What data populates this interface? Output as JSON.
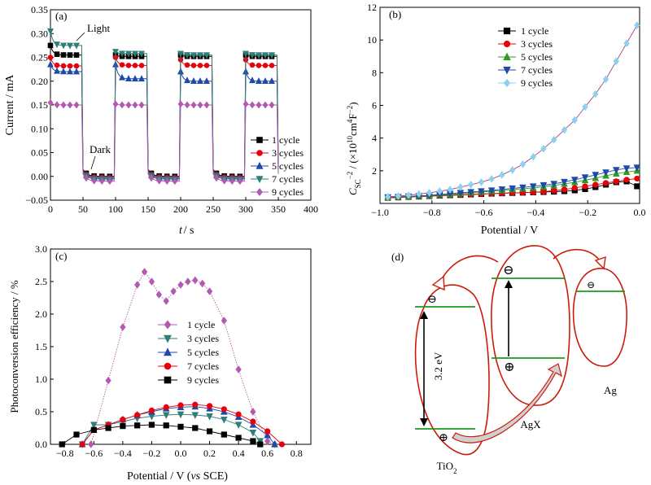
{
  "chart_data": [
    {
      "panel_label": "(a)",
      "type": "line",
      "xlabel": "t / s",
      "ylabel": "Current / mA",
      "xlim": [
        0,
        400
      ],
      "ylim": [
        -0.05,
        0.35
      ],
      "xticks": [
        0,
        50,
        100,
        150,
        200,
        250,
        300,
        350,
        400
      ],
      "yticks": [
        -0.05,
        0.0,
        0.05,
        0.1,
        0.15,
        0.2,
        0.25,
        0.3,
        0.35
      ],
      "annotations": [
        {
          "text": "Light",
          "x": 55,
          "y": 0.305
        },
        {
          "text": "Dark",
          "x": 62,
          "y": 0.065
        }
      ],
      "legend_position": "bottom-right",
      "markers": [
        "square",
        "circle",
        "triangle-up",
        "triangle-down",
        "diamond"
      ],
      "colors": [
        "#000000",
        "#e8000b",
        "#1f4aa8",
        "#2f7f78",
        "#b15bb0"
      ],
      "light_on_times": [
        0,
        100,
        200,
        300
      ],
      "light_off_times": [
        50,
        150,
        250,
        350
      ],
      "series": [
        {
          "name": "1 cycle",
          "dark": 0.0,
          "on": [
            0.275,
            0.255,
            0.255,
            0.255
          ],
          "steady": [
            0.255,
            0.252,
            0.252,
            0.252
          ]
        },
        {
          "name": "3 cycles",
          "dark": -0.002,
          "on": [
            0.25,
            0.25,
            0.245,
            0.245
          ],
          "steady": [
            0.232,
            0.233,
            0.233,
            0.233
          ]
        },
        {
          "name": "5 cycles",
          "dark": -0.004,
          "on": [
            0.235,
            0.235,
            0.22,
            0.22
          ],
          "steady": [
            0.22,
            0.205,
            0.2,
            0.2
          ]
        },
        {
          "name": "7 cycles",
          "dark": -0.006,
          "on": [
            0.305,
            0.262,
            0.258,
            0.258
          ],
          "steady": [
            0.275,
            0.258,
            0.255,
            0.255
          ]
        },
        {
          "name": "9 cycles",
          "dark": -0.01,
          "on": [
            0.155,
            0.152,
            0.152,
            0.152
          ],
          "steady": [
            0.15,
            0.15,
            0.15,
            0.15
          ]
        }
      ]
    },
    {
      "panel_label": "(b)",
      "type": "line",
      "xlabel": "Potential / V",
      "ylabel_base": "C",
      "ylabel_sub": "SC",
      "ylabel_sup": "−2",
      "ylabel_rest": " / (×10",
      "ylabel_sup2": "10",
      "ylabel_rest2": "cm",
      "ylabel_sup3": "4",
      "ylabel_rest3": "F",
      "ylabel_sup4": "−2",
      "ylabel_end": ")",
      "xlim": [
        -1.0,
        0.0
      ],
      "ylim": [
        0,
        12
      ],
      "xticks": [
        -1.0,
        -0.8,
        -0.6,
        -0.4,
        -0.2,
        0.0
      ],
      "xtick_labels": [
        "−1.0",
        "−0.8",
        "−0.6",
        "−0.4",
        "−0.2",
        "0.0"
      ],
      "yticks": [
        2,
        4,
        6,
        8,
        10,
        12
      ],
      "legend_position": "top-left",
      "markers": [
        "square",
        "circle",
        "triangle-up",
        "triangle-down",
        "diamond"
      ],
      "colors": [
        "#000000",
        "#e8000b",
        "#2f9a1f",
        "#1f4aa8",
        "#8fd0f0"
      ],
      "x": [
        -0.97,
        -0.93,
        -0.89,
        -0.85,
        -0.81,
        -0.77,
        -0.73,
        -0.69,
        -0.65,
        -0.61,
        -0.57,
        -0.53,
        -0.49,
        -0.45,
        -0.41,
        -0.37,
        -0.33,
        -0.29,
        -0.25,
        -0.21,
        -0.17,
        -0.13,
        -0.09,
        -0.05,
        -0.01
      ],
      "series": [
        {
          "name": "1 cycle",
          "values": [
            0.35,
            0.37,
            0.4,
            0.42,
            0.45,
            0.48,
            0.5,
            0.52,
            0.55,
            0.58,
            0.6,
            0.62,
            0.64,
            0.66,
            0.68,
            0.7,
            0.72,
            0.75,
            0.8,
            0.88,
            1.0,
            1.15,
            1.3,
            1.35,
            1.05
          ]
        },
        {
          "name": "3 cycles",
          "values": [
            0.35,
            0.37,
            0.4,
            0.42,
            0.45,
            0.48,
            0.5,
            0.52,
            0.55,
            0.58,
            0.6,
            0.62,
            0.64,
            0.66,
            0.68,
            0.72,
            0.78,
            0.85,
            0.95,
            1.05,
            1.15,
            1.25,
            1.35,
            1.45,
            1.52
          ]
        },
        {
          "name": "5 cycles",
          "values": [
            0.38,
            0.4,
            0.42,
            0.45,
            0.48,
            0.52,
            0.55,
            0.6,
            0.65,
            0.7,
            0.75,
            0.8,
            0.85,
            0.9,
            0.95,
            1.02,
            1.1,
            1.2,
            1.3,
            1.42,
            1.55,
            1.7,
            1.82,
            1.92,
            2.0
          ]
        },
        {
          "name": "7 cycles",
          "values": [
            0.38,
            0.4,
            0.43,
            0.46,
            0.5,
            0.55,
            0.6,
            0.65,
            0.7,
            0.75,
            0.8,
            0.86,
            0.92,
            0.98,
            1.05,
            1.12,
            1.2,
            1.32,
            1.45,
            1.6,
            1.75,
            1.9,
            2.05,
            2.15,
            2.2
          ]
        },
        {
          "name": "9 cycles",
          "values": [
            0.4,
            0.45,
            0.5,
            0.58,
            0.65,
            0.75,
            0.85,
            1.0,
            1.15,
            1.3,
            1.5,
            1.75,
            2.05,
            2.4,
            2.85,
            3.35,
            3.9,
            4.5,
            5.1,
            5.9,
            6.7,
            7.6,
            8.7,
            9.8,
            10.9
          ]
        }
      ]
    },
    {
      "panel_label": "(c)",
      "type": "line",
      "xlabel_prefix": "Potential / V (",
      "xlabel_italic": "vs",
      "xlabel_suffix": " SCE)",
      "ylabel": "Photoconversion efficiency / %",
      "xlim": [
        -0.9,
        0.9
      ],
      "ylim": [
        0,
        3.0
      ],
      "xticks": [
        -0.8,
        -0.6,
        -0.4,
        -0.2,
        0.0,
        0.2,
        0.4,
        0.6,
        0.8
      ],
      "xtick_labels": [
        "−0.8",
        "−0.6",
        "−0.4",
        "−0.2",
        "0.0",
        "0.2",
        "0.4",
        "0.6",
        "0.8"
      ],
      "yticks": [
        0.0,
        0.5,
        1.0,
        1.5,
        2.0,
        2.5,
        3.0
      ],
      "legend_position": "center",
      "markers": [
        "diamond",
        "triangle-down",
        "triangle-up",
        "circle",
        "square"
      ],
      "colors": [
        "#b15bb0",
        "#2f7f78",
        "#1f4aa8",
        "#e8000b",
        "#000000"
      ],
      "series": [
        {
          "name": "1 cycle",
          "x": [
            -0.62,
            -0.5,
            -0.4,
            -0.3,
            -0.25,
            -0.2,
            -0.15,
            -0.1,
            -0.05,
            0.0,
            0.05,
            0.1,
            0.15,
            0.2,
            0.3,
            0.4,
            0.5,
            0.6,
            0.65
          ],
          "values": [
            0.0,
            0.98,
            1.8,
            2.45,
            2.65,
            2.5,
            2.3,
            2.2,
            2.35,
            2.45,
            2.5,
            2.52,
            2.47,
            2.35,
            1.9,
            1.15,
            0.5,
            0.05,
            0.0
          ]
        },
        {
          "name": "3 cycles",
          "x": [
            -0.68,
            -0.6,
            -0.5,
            -0.4,
            -0.3,
            -0.2,
            -0.1,
            0.0,
            0.1,
            0.2,
            0.3,
            0.4,
            0.5,
            0.55
          ],
          "values": [
            0.0,
            0.3,
            0.3,
            0.35,
            0.4,
            0.43,
            0.45,
            0.46,
            0.45,
            0.43,
            0.38,
            0.3,
            0.18,
            0.05
          ]
        },
        {
          "name": "5 cycles",
          "x": [
            -0.68,
            -0.6,
            -0.5,
            -0.4,
            -0.3,
            -0.2,
            -0.1,
            0.0,
            0.1,
            0.2,
            0.3,
            0.4,
            0.5,
            0.6,
            0.65
          ],
          "values": [
            0.0,
            0.22,
            0.3,
            0.38,
            0.45,
            0.5,
            0.55,
            0.57,
            0.58,
            0.55,
            0.5,
            0.42,
            0.3,
            0.14,
            0.0
          ]
        },
        {
          "name": "7 cycles",
          "x": [
            -0.68,
            -0.6,
            -0.5,
            -0.4,
            -0.3,
            -0.2,
            -0.1,
            0.0,
            0.1,
            0.2,
            0.3,
            0.4,
            0.5,
            0.6,
            0.7
          ],
          "values": [
            0.0,
            0.22,
            0.3,
            0.38,
            0.45,
            0.52,
            0.57,
            0.6,
            0.61,
            0.59,
            0.54,
            0.46,
            0.35,
            0.2,
            0.0
          ]
        },
        {
          "name": "9 cycles",
          "x": [
            -0.82,
            -0.72,
            -0.6,
            -0.5,
            -0.4,
            -0.3,
            -0.2,
            -0.1,
            0.0,
            0.1,
            0.2,
            0.3,
            0.4,
            0.5,
            0.55
          ],
          "values": [
            0.0,
            0.15,
            0.22,
            0.25,
            0.28,
            0.29,
            0.3,
            0.29,
            0.27,
            0.25,
            0.2,
            0.15,
            0.1,
            0.05,
            0.0
          ]
        }
      ]
    },
    {
      "panel_label": "(d)",
      "type": "diagram",
      "labels": {
        "tio2_base": "TiO",
        "tio2_sub": "2",
        "agx": "AgX",
        "ag": "Ag",
        "gap": "3.2 eV",
        "electron": "⊖",
        "hole": "⊕"
      },
      "colors": {
        "outline": "#cc1a0a",
        "band": "#1d9a1d",
        "arrow_fill": "#d0d0d0"
      }
    }
  ]
}
